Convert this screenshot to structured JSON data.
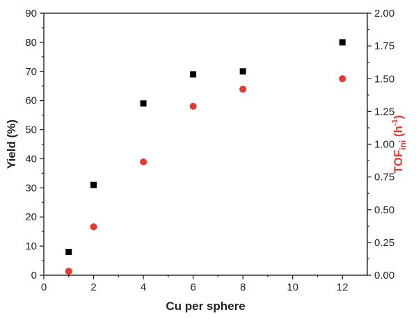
{
  "chart_data": {
    "type": "scatter",
    "xlabel": "Cu per sphere",
    "ylabel_left": "Yield (%)",
    "ylabel_right": {
      "main": "TOF",
      "sub": "ini",
      "unit_open": " (h",
      "unit_sup": "-1",
      "unit_close": ")"
    },
    "xlim": [
      0,
      13
    ],
    "ylim_left": [
      0,
      90
    ],
    "ylim_right": [
      0,
      2.0
    ],
    "x_ticks": [
      "0",
      "2",
      "4",
      "6",
      "8",
      "10",
      "12"
    ],
    "y_left_ticks": [
      "0",
      "10",
      "20",
      "30",
      "40",
      "50",
      "60",
      "70",
      "80",
      "90"
    ],
    "y_right_ticks": [
      "0.00",
      "0.25",
      "0.50",
      "0.75",
      "1.00",
      "1.25",
      "1.50",
      "1.75",
      "2.00"
    ],
    "grid": false,
    "series": [
      {
        "axis": "left",
        "marker": "square",
        "color": "#000000",
        "points": [
          {
            "x": 1,
            "y": 8
          },
          {
            "x": 2,
            "y": 31
          },
          {
            "x": 4,
            "y": 59
          },
          {
            "x": 6,
            "y": 69
          },
          {
            "x": 8,
            "y": 70
          },
          {
            "x": 12,
            "y": 80
          }
        ]
      },
      {
        "axis": "right",
        "marker": "circle",
        "color": "#e53935",
        "points": [
          {
            "x": 1,
            "y": 0.03
          },
          {
            "x": 2,
            "y": 0.37
          },
          {
            "x": 4,
            "y": 0.865
          },
          {
            "x": 6,
            "y": 1.29
          },
          {
            "x": 8,
            "y": 1.42
          },
          {
            "x": 12,
            "y": 1.5
          }
        ]
      }
    ]
  }
}
